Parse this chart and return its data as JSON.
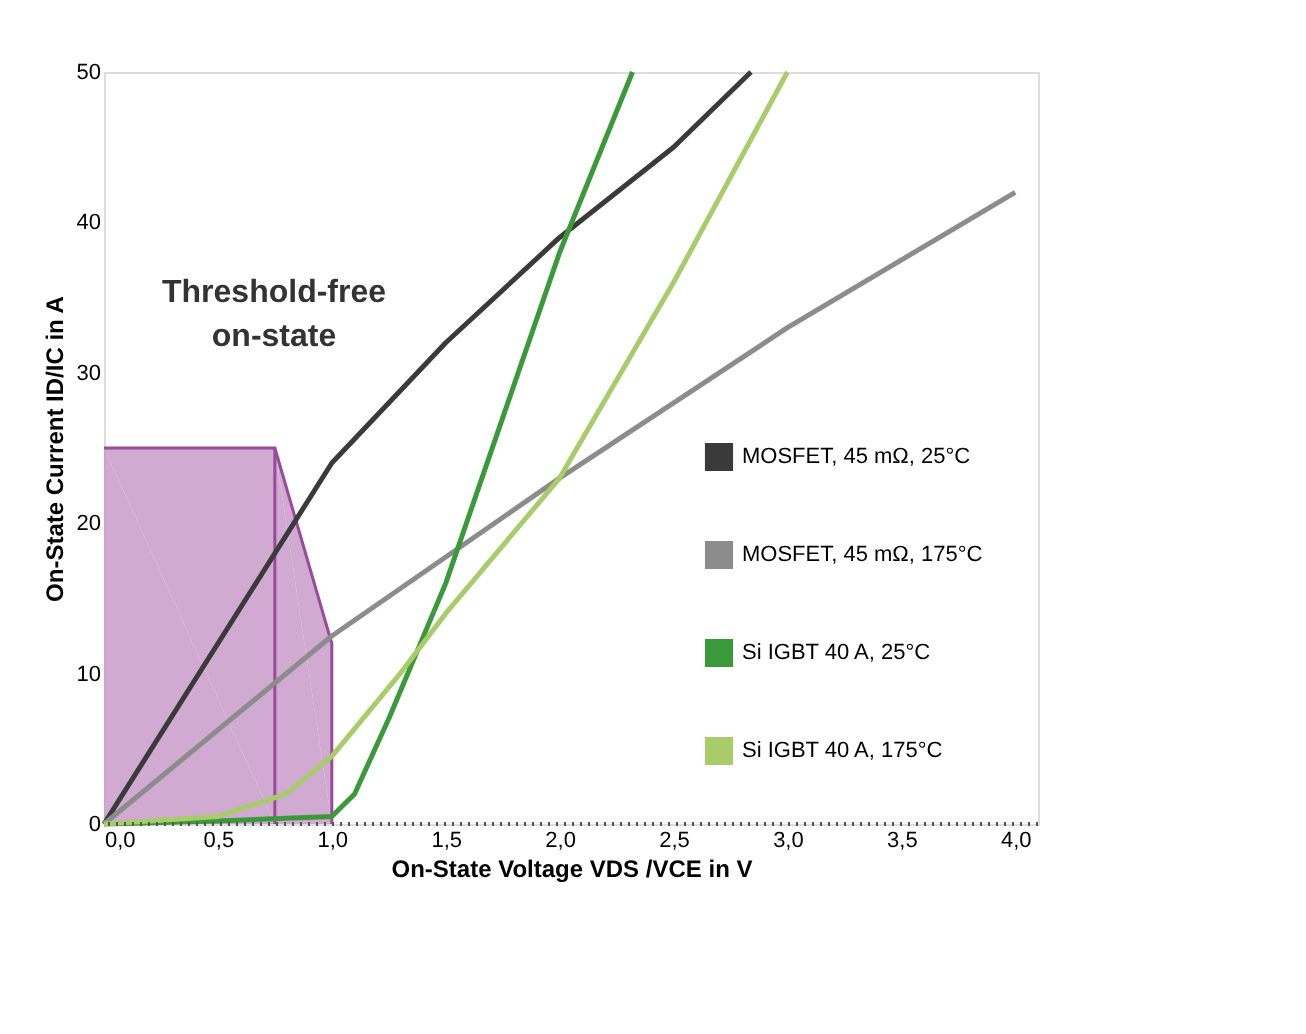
{
  "chart_data": {
    "type": "line",
    "xlabel": "On-State Voltage VDS /VCE in V",
    "ylabel": "On-State Current ID/IC in A",
    "xlim": [
      0,
      4.1
    ],
    "ylim": [
      0,
      50
    ],
    "xticks": [
      {
        "value": 0,
        "label": "0,0"
      },
      {
        "value": 0.5,
        "label": "0,5"
      },
      {
        "value": 1,
        "label": "1,0"
      },
      {
        "value": 1.5,
        "label": "1,5"
      },
      {
        "value": 2,
        "label": "2,0"
      },
      {
        "value": 2.5,
        "label": "2,5"
      },
      {
        "value": 3,
        "label": "3,0"
      },
      {
        "value": 3.5,
        "label": "3,5"
      },
      {
        "value": 4,
        "label": "4,0"
      }
    ],
    "yticks": [
      0,
      10,
      20,
      30,
      40,
      50
    ],
    "legend": "right",
    "annotations": [
      "Threshold-free\non-state"
    ],
    "ref_lines": [
      {
        "axis": "y",
        "value": 0,
        "line_style": "dotted",
        "color": "#555555"
      }
    ],
    "series": [
      {
        "type": "area",
        "color": "#c99bc9",
        "x": [
          0,
          0.75,
          1.0
        ],
        "values": [
          25,
          25,
          12
        ]
      },
      {
        "name": "MOSFET, 45 mΩ, 25°C",
        "color": "#3a3a3a",
        "x": [
          0,
          0.5,
          1.0,
          1.5,
          2.0,
          2.5,
          2.84
        ],
        "values": [
          0,
          12,
          24,
          32,
          39,
          45,
          50
        ]
      },
      {
        "name": "MOSFET, 45 mΩ, 175°C",
        "color": "#8c8c8c",
        "x": [
          0,
          1,
          2,
          3,
          4
        ],
        "values": [
          0,
          12.5,
          23,
          33,
          42
        ]
      },
      {
        "name": "Si IGBT 40 A, 25°C",
        "color": "#3a9a3a",
        "x": [
          0,
          0.5,
          1.0,
          1.1,
          1.25,
          1.5,
          1.75,
          2.0,
          2.32
        ],
        "values": [
          0,
          0.2,
          0.5,
          2,
          7,
          16,
          27,
          38,
          50
        ]
      },
      {
        "name": "Si IGBT 40 A, 175°C",
        "color": "#a8cc6a",
        "x": [
          0,
          0.5,
          0.8,
          1.0,
          1.3,
          1.5,
          2.0,
          2.5,
          3.0
        ],
        "values": [
          0,
          0.5,
          2,
          4.5,
          10,
          14,
          23,
          36,
          50
        ]
      }
    ]
  }
}
